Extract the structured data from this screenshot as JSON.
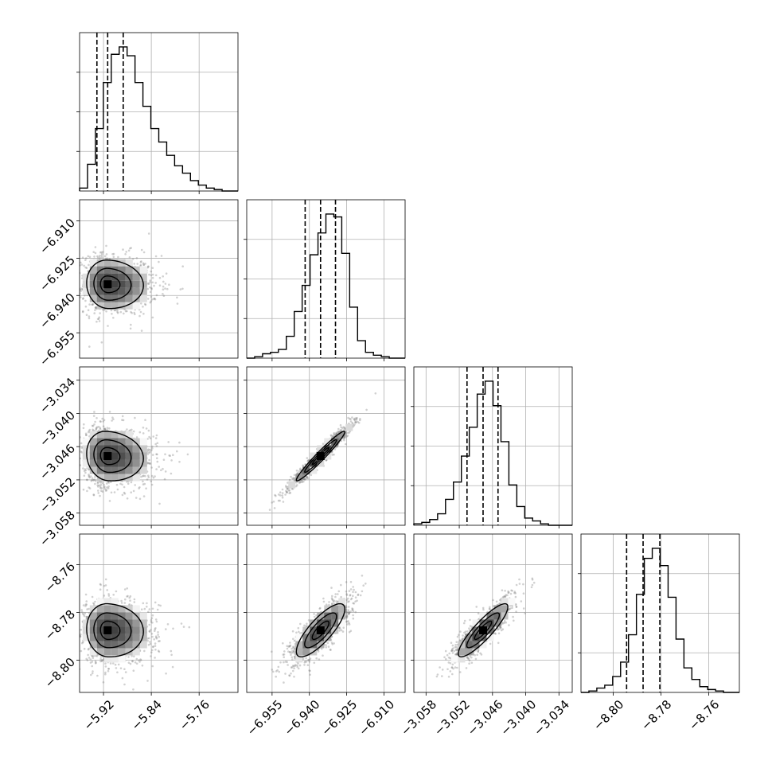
{
  "chart_data": {
    "type": "corner",
    "grid": true,
    "parameters": [
      {
        "index": 0,
        "ticks": [
          -5.92,
          -5.84,
          -5.76
        ],
        "tick_labels": [
          "−5.92",
          "−5.84",
          "−5.76"
        ],
        "range": [
          -5.96,
          -5.695
        ],
        "quantiles": [
          -5.931,
          -5.913,
          -5.887
        ],
        "histogram": [
          2,
          18,
          42,
          73,
          92,
          97,
          91,
          73,
          57,
          42,
          33,
          24,
          17,
          12,
          7,
          4,
          2,
          1,
          0,
          0
        ]
      },
      {
        "index": 1,
        "ticks": [
          -6.955,
          -6.94,
          -6.925,
          -6.91
        ],
        "tick_labels": [
          "−6.955",
          "−6.940",
          "−6.925",
          "−6.910"
        ],
        "range": [
          -6.9652,
          -6.9015
        ],
        "quantiles": [
          -6.9417,
          -6.9355,
          -6.9295
        ],
        "histogram": [
          0,
          1,
          3,
          4,
          6,
          15,
          32,
          50,
          71,
          86,
          99,
          97,
          72,
          35,
          12,
          4,
          2,
          1,
          0,
          0
        ]
      },
      {
        "index": 2,
        "ticks": [
          -3.058,
          -3.052,
          -3.046,
          -3.04,
          -3.034
        ],
        "tick_labels": [
          "−3.058",
          "−3.052",
          "−3.046",
          "−3.040",
          "−3.034"
        ],
        "range": [
          -3.0602,
          -3.0316
        ],
        "quantiles": [
          -3.0506,
          -3.0477,
          -3.045
        ],
        "histogram": [
          1,
          2,
          4,
          8,
          18,
          30,
          48,
          68,
          91,
          100,
          83,
          58,
          28,
          13,
          5,
          3,
          1,
          0,
          0,
          0
        ]
      },
      {
        "index": 3,
        "ticks": [
          -8.8,
          -8.78,
          -8.76
        ],
        "tick_labels": [
          "−8.80",
          "−8.78",
          "−8.76"
        ],
        "range": [
          -8.8135,
          -8.7472
        ],
        "quantiles": [
          -8.7944,
          -8.7875,
          -8.7805
        ],
        "histogram": [
          0,
          1,
          3,
          5,
          11,
          21,
          40,
          68,
          93,
          100,
          88,
          66,
          37,
          17,
          9,
          4,
          2,
          1,
          0,
          0
        ]
      }
    ],
    "correlations": [
      {
        "x": 0,
        "y": 1,
        "rho": -0.05
      },
      {
        "x": 0,
        "y": 2,
        "rho": -0.1
      },
      {
        "x": 1,
        "y": 2,
        "rho": 0.97
      },
      {
        "x": 0,
        "y": 3,
        "rho": -0.05
      },
      {
        "x": 1,
        "y": 3,
        "rho": 0.8
      },
      {
        "x": 2,
        "y": 3,
        "rho": 0.88
      }
    ]
  }
}
